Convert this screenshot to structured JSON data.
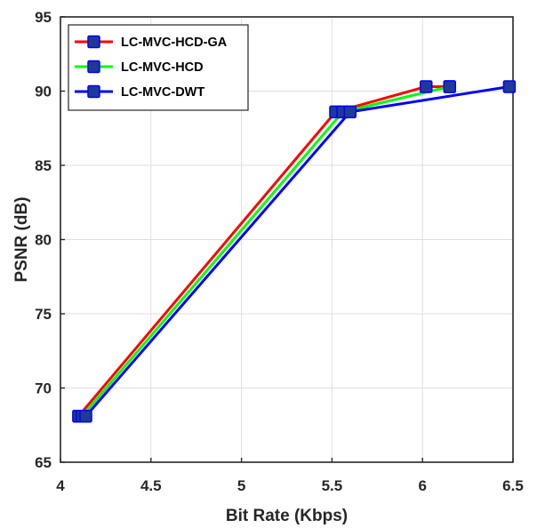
{
  "chart_data": {
    "type": "line",
    "xlabel": "Bit Rate (Kbps)",
    "ylabel": "PSNR (dB)",
    "xlim": [
      4,
      6.5
    ],
    "ylim": [
      65,
      95
    ],
    "xticks": [
      "4",
      "4.5",
      "5",
      "5.5",
      "6",
      "6.5"
    ],
    "yticks": [
      "65",
      "70",
      "75",
      "80",
      "85",
      "90",
      "95"
    ],
    "grid": true,
    "legend_position": "top-left",
    "series": [
      {
        "name": "LC-MVC-HCD-GA",
        "color": "#ff0000",
        "points": [
          [
            4.1,
            68.1
          ],
          [
            5.52,
            88.6
          ],
          [
            6.02,
            90.3
          ],
          [
            6.15,
            90.3
          ]
        ]
      },
      {
        "name": "LC-MVC-HCD",
        "color": "#00ff00",
        "points": [
          [
            4.12,
            68.1
          ],
          [
            5.56,
            88.6
          ],
          [
            6.15,
            90.3
          ]
        ]
      },
      {
        "name": "LC-MVC-DWT",
        "color": "#0000ff",
        "points": [
          [
            4.14,
            68.1
          ],
          [
            5.6,
            88.6
          ],
          [
            6.48,
            90.3
          ]
        ]
      }
    ]
  }
}
